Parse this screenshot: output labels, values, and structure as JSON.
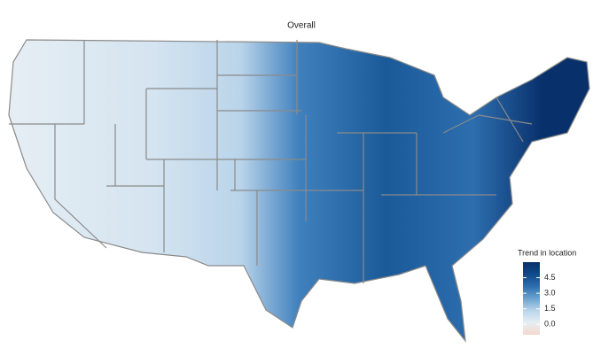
{
  "title": "Overall",
  "legend": {
    "title": "Trend in location",
    "range": [
      -1,
      6
    ],
    "ticks": [
      {
        "value": 0,
        "label": "0.0"
      },
      {
        "value": 1.5,
        "label": "1.5"
      },
      {
        "value": 3,
        "label": "3.0"
      },
      {
        "value": 4.5,
        "label": "4.5"
      }
    ],
    "colors": [
      "#f4d9cc",
      "#e6eef4",
      "#b9d4ea",
      "#6aa3d0",
      "#2d6eaf",
      "#0f4a8a",
      "#08306b"
    ]
  }
}
